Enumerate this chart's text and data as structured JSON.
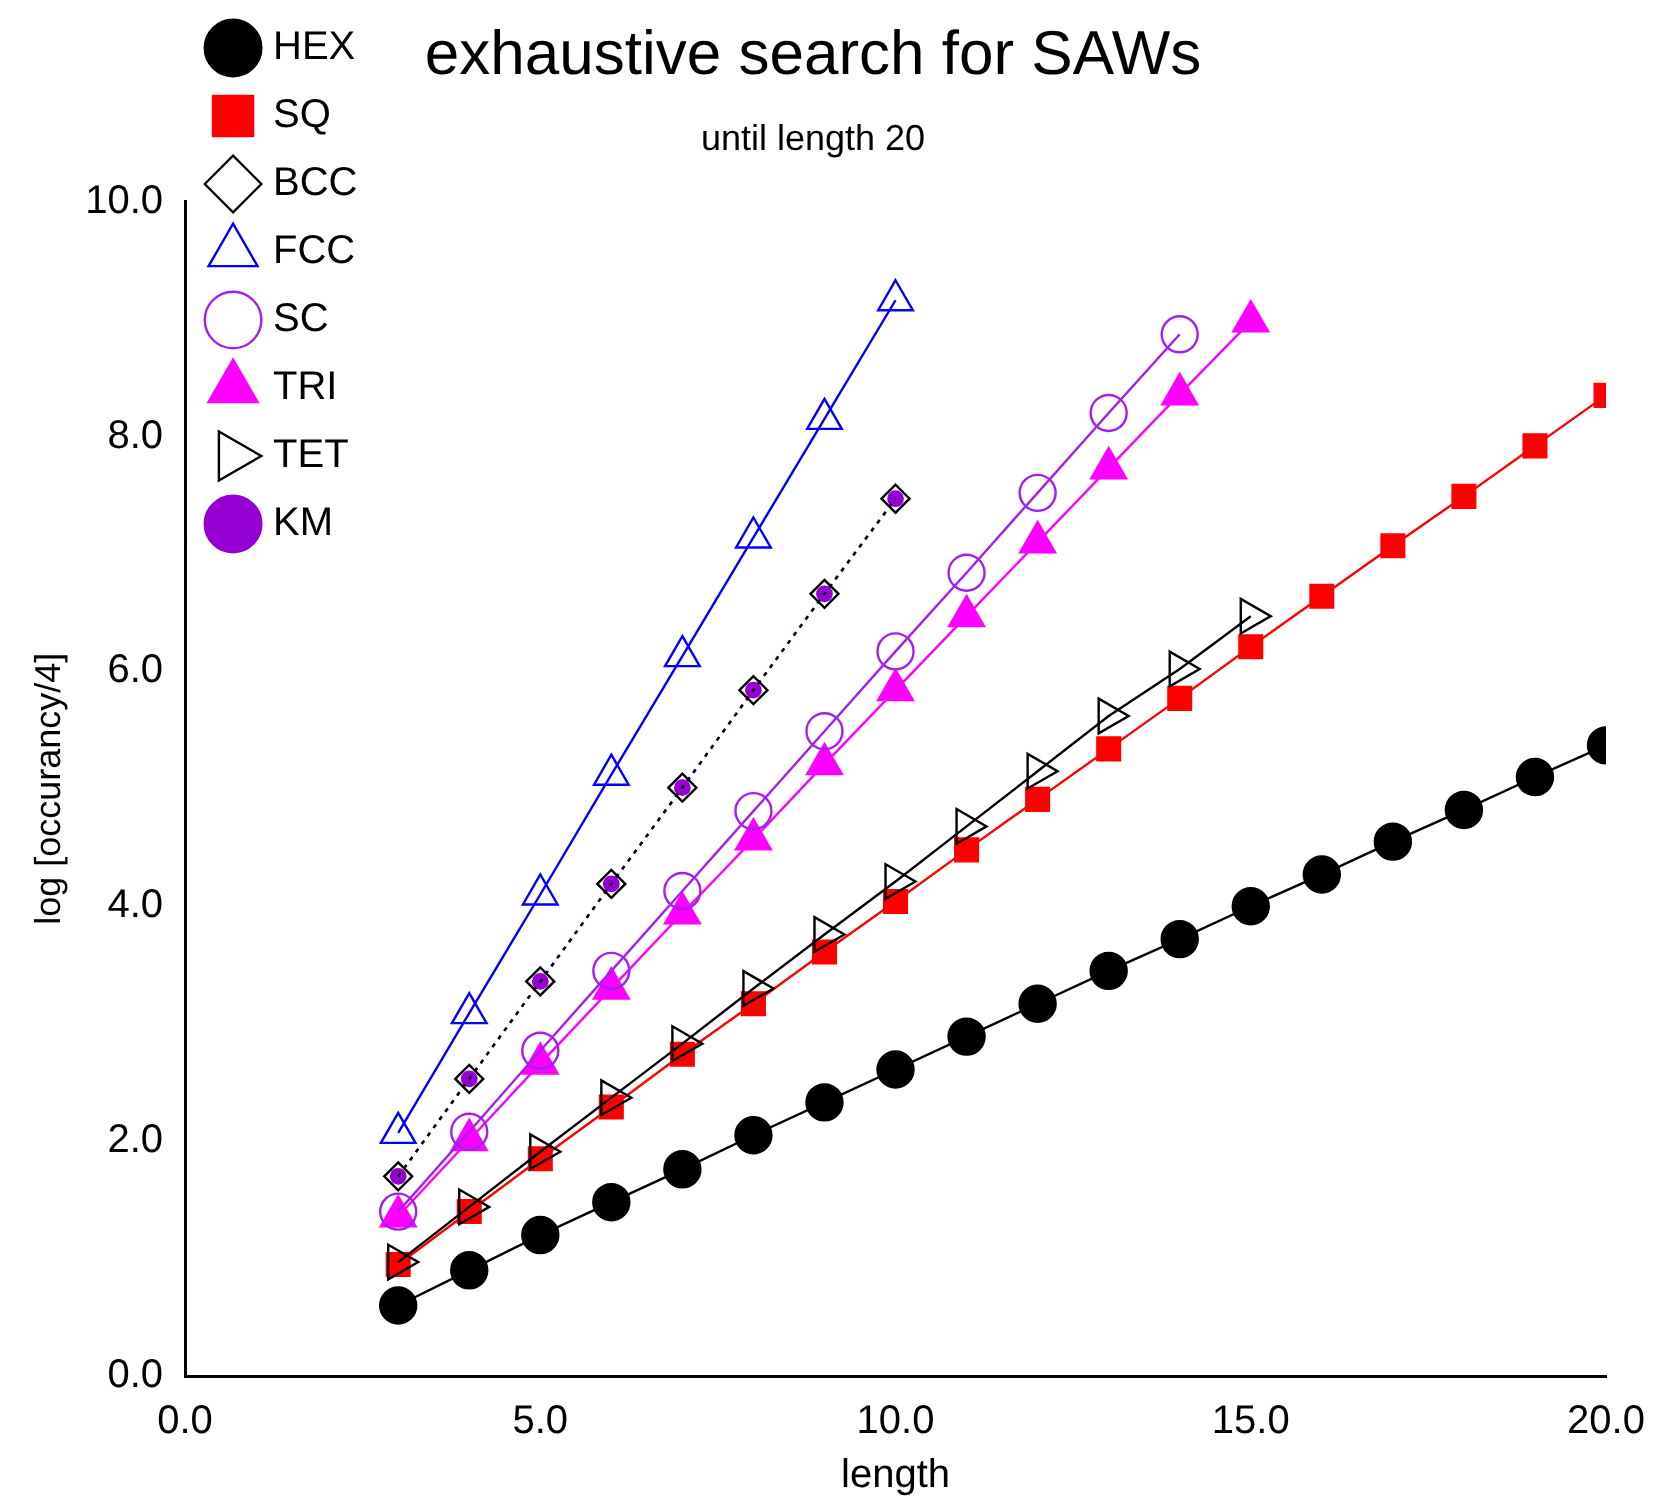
{
  "chart_data": {
    "type": "line",
    "title": "exhaustive search for SAWs",
    "subtitle": "until length 20",
    "xlabel": "length",
    "ylabel": "log [occurancy/4]",
    "xlim": [
      0,
      20
    ],
    "xticks": [
      {
        "value": 0,
        "label": "0.0"
      },
      {
        "value": 5,
        "label": "5.0"
      },
      {
        "value": 10,
        "label": "10.0"
      },
      {
        "value": 15,
        "label": "15.0"
      },
      {
        "value": 20,
        "label": "20.0"
      }
    ],
    "ylim": [
      0,
      10
    ],
    "yticks": [
      {
        "value": 0,
        "label": "0.0"
      },
      {
        "value": 2,
        "label": "2.0"
      },
      {
        "value": 4,
        "label": "4.0"
      },
      {
        "value": 6,
        "label": "6.0"
      },
      {
        "value": 8,
        "label": "8.0"
      },
      {
        "value": 10,
        "label": "10.0"
      }
    ],
    "grid": false,
    "legend": "top left",
    "line_style": "solid",
    "series": [
      {
        "name": "HEX",
        "color": "#000000",
        "marker": "circle",
        "x": [
          3,
          4,
          5,
          6,
          7,
          8,
          9,
          10,
          11,
          12,
          13,
          14,
          15,
          16,
          17,
          18,
          19,
          20
        ],
        "values": [
          0.6,
          0.9,
          1.2,
          1.48,
          1.76,
          2.05,
          2.33,
          2.61,
          2.89,
          3.17,
          3.45,
          3.72,
          4.0,
          4.27,
          4.55,
          4.82,
          5.1,
          5.37
        ]
      },
      {
        "name": "SQ",
        "color": "#ff0000",
        "marker": "square",
        "x": [
          3,
          4,
          5,
          6,
          7,
          8,
          9,
          10,
          11,
          12,
          13,
          14,
          15,
          16,
          17,
          18,
          19,
          20
        ],
        "values": [
          0.95,
          1.4,
          1.85,
          2.29,
          2.74,
          3.17,
          3.61,
          4.04,
          4.48,
          4.91,
          5.34,
          5.77,
          6.21,
          6.64,
          7.07,
          7.49,
          7.92,
          8.35
        ]
      },
      {
        "name": "BCC",
        "color": "#000000",
        "marker": "diamond",
        "line_style": "dotted",
        "x": [
          3,
          4,
          5,
          6,
          7,
          8,
          9,
          10
        ],
        "values": [
          1.7,
          2.53,
          3.36,
          4.19,
          5.01,
          5.84,
          6.66,
          7.47
        ]
      },
      {
        "name": "FCC",
        "color": "#0000ff",
        "marker": "triangle",
        "x": [
          3,
          4,
          5,
          6,
          7,
          8,
          9,
          10
        ],
        "values": [
          2.07,
          3.09,
          4.1,
          5.12,
          6.13,
          7.14,
          8.15,
          9.16
        ]
      },
      {
        "name": "SC",
        "color": "#a020f0",
        "marker": "circle",
        "x": [
          3,
          4,
          5,
          6,
          7,
          8,
          9,
          10,
          11,
          12,
          13,
          14
        ],
        "values": [
          1.4,
          2.08,
          2.77,
          3.45,
          4.13,
          4.81,
          5.49,
          6.17,
          6.84,
          7.52,
          8.2,
          8.87
        ]
      },
      {
        "name": "TRI",
        "color": "#ff00ff",
        "marker": "triangle",
        "x": [
          3,
          4,
          5,
          6,
          7,
          8,
          9,
          10,
          11,
          12,
          13,
          14,
          15
        ],
        "values": [
          1.36,
          2.01,
          2.66,
          3.3,
          3.94,
          4.57,
          5.21,
          5.84,
          6.47,
          7.1,
          7.73,
          8.36,
          8.98
        ]
      },
      {
        "name": "TET",
        "color": "#000000",
        "marker": "triangle",
        "x": [
          3,
          4,
          5,
          6,
          7,
          8,
          9,
          10,
          11,
          12,
          13,
          14,
          15
        ],
        "values": [
          0.97,
          1.44,
          1.91,
          2.37,
          2.83,
          3.3,
          3.76,
          4.21,
          4.68,
          5.15,
          5.62,
          6.02,
          6.47
        ]
      },
      {
        "name": "KM",
        "color": "#9400d3",
        "marker": "circle",
        "line_style": "dotted",
        "x": [
          3,
          4,
          5,
          6,
          7,
          8,
          9,
          10
        ],
        "values": [
          1.7,
          2.53,
          3.36,
          4.19,
          5.01,
          5.84,
          6.66,
          7.47
        ]
      }
    ]
  }
}
